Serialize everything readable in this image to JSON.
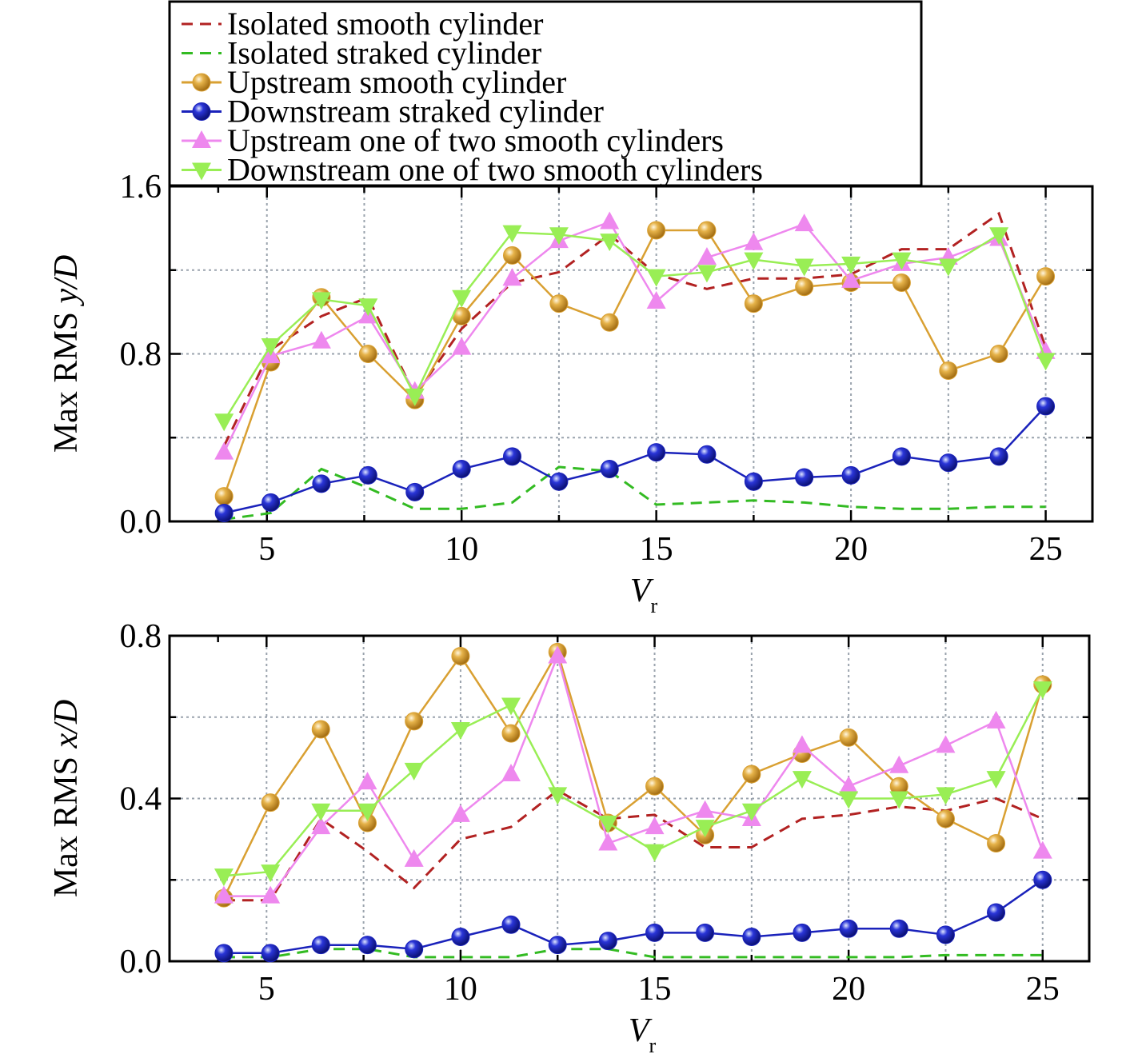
{
  "legend": {
    "entries": [
      {
        "label": "Isolated smooth cylinder",
        "color": "#b22222",
        "style": "dashed",
        "marker": "none"
      },
      {
        "label": "Isolated straked cylinder",
        "color": "#33bb22",
        "style": "dashed",
        "marker": "none"
      },
      {
        "label": "Upstream smooth cylinder",
        "color": "#d9a032",
        "style": "solid",
        "marker": "circle"
      },
      {
        "label": "Downstream straked cylinder",
        "color": "#1a22bb",
        "style": "solid",
        "marker": "circle"
      },
      {
        "label": "Upstream one of two smooth cylinders",
        "color": "#ee88ee",
        "style": "solid",
        "marker": "triangle-up"
      },
      {
        "label": "Downstream one of two smooth cylinders",
        "color": "#99ee55",
        "style": "solid",
        "marker": "triangle-down"
      }
    ]
  },
  "chart_data": [
    {
      "type": "line",
      "xlabel": "V",
      "xlabel_sub": "r",
      "ylabel_prefix": "Max RMS ",
      "ylabel_italic": "y/D",
      "xlim": [
        2.5,
        26.2
      ],
      "ylim": [
        0,
        1.6
      ],
      "xticks": [
        5,
        10,
        15,
        20,
        25
      ],
      "xtick_labels": [
        "5",
        "10",
        "15",
        "20",
        "25"
      ],
      "yticks": [
        0,
        0.8,
        1.6
      ],
      "ytick_labels": [
        "0.0",
        "0.8",
        "1.6"
      ],
      "grid": true,
      "x": [
        3.9,
        5.1,
        6.4,
        7.6,
        8.8,
        10.0,
        11.3,
        12.5,
        13.8,
        15.0,
        16.3,
        17.5,
        18.8,
        20.0,
        21.3,
        22.5,
        23.8,
        25.0
      ],
      "series": [
        {
          "name": "Isolated smooth cylinder",
          "values": [
            0.36,
            0.82,
            0.98,
            1.07,
            0.6,
            0.92,
            1.14,
            1.19,
            1.37,
            1.18,
            1.11,
            1.16,
            1.16,
            1.18,
            1.3,
            1.3,
            1.47,
            0.83
          ]
        },
        {
          "name": "Isolated straked cylinder",
          "values": [
            0.01,
            0.04,
            0.25,
            0.16,
            0.06,
            0.06,
            0.09,
            0.26,
            0.24,
            0.08,
            0.09,
            0.1,
            0.09,
            0.07,
            0.06,
            0.06,
            0.07,
            0.07
          ]
        },
        {
          "name": "Upstream smooth cylinder",
          "values": [
            0.12,
            0.76,
            1.07,
            0.8,
            0.58,
            0.98,
            1.27,
            1.04,
            0.95,
            1.39,
            1.39,
            1.04,
            1.12,
            1.14,
            1.14,
            0.72,
            0.8,
            1.17
          ]
        },
        {
          "name": "Downstream straked cylinder",
          "values": [
            0.04,
            0.09,
            0.18,
            0.22,
            0.14,
            0.25,
            0.31,
            0.19,
            0.25,
            0.33,
            0.32,
            0.19,
            0.21,
            0.22,
            0.31,
            0.28,
            0.31,
            0.55
          ]
        },
        {
          "name": "Upstream one of two smooth cylinders",
          "values": [
            0.33,
            0.79,
            0.86,
            0.98,
            0.62,
            0.83,
            1.16,
            1.34,
            1.43,
            1.05,
            1.26,
            1.33,
            1.42,
            1.15,
            1.23,
            1.26,
            1.35,
            0.81
          ]
        },
        {
          "name": "Downstream one of two smooth cylinders",
          "values": [
            0.48,
            0.84,
            1.06,
            1.03,
            0.6,
            1.07,
            1.38,
            1.37,
            1.34,
            1.17,
            1.19,
            1.25,
            1.22,
            1.23,
            1.25,
            1.22,
            1.37,
            0.77
          ]
        }
      ]
    },
    {
      "type": "line",
      "xlabel": "V",
      "xlabel_sub": "r",
      "ylabel_prefix": "Max RMS ",
      "ylabel_italic": "x/D",
      "xlim": [
        2.5,
        26.2
      ],
      "ylim": [
        0,
        0.8
      ],
      "xticks": [
        5,
        10,
        15,
        20,
        25
      ],
      "xtick_labels": [
        "5",
        "10",
        "15",
        "20",
        "25"
      ],
      "yticks": [
        0,
        0.4,
        0.8
      ],
      "ytick_labels": [
        "0.0",
        "0.4",
        "0.8"
      ],
      "grid": true,
      "x": [
        3.9,
        5.1,
        6.4,
        7.6,
        8.8,
        10.0,
        11.3,
        12.5,
        13.8,
        15.0,
        16.3,
        17.5,
        18.8,
        20.0,
        21.3,
        22.5,
        23.8,
        25.0
      ],
      "series": [
        {
          "name": "Isolated smooth cylinder",
          "values": [
            0.15,
            0.15,
            0.35,
            0.27,
            0.18,
            0.3,
            0.33,
            0.42,
            0.35,
            0.36,
            0.28,
            0.28,
            0.35,
            0.36,
            0.38,
            0.37,
            0.4,
            0.35
          ]
        },
        {
          "name": "Isolated straked cylinder",
          "values": [
            0.01,
            0.01,
            0.03,
            0.03,
            0.01,
            0.01,
            0.01,
            0.03,
            0.03,
            0.01,
            0.01,
            0.01,
            0.01,
            0.01,
            0.01,
            0.015,
            0.015,
            0.015
          ]
        },
        {
          "name": "Upstream smooth cylinder",
          "values": [
            0.155,
            0.39,
            0.57,
            0.34,
            0.59,
            0.75,
            0.56,
            0.76,
            0.34,
            0.43,
            0.31,
            0.46,
            0.51,
            0.55,
            0.43,
            0.35,
            0.29,
            0.68
          ]
        },
        {
          "name": "Downstream straked cylinder",
          "values": [
            0.02,
            0.02,
            0.04,
            0.04,
            0.03,
            0.06,
            0.09,
            0.04,
            0.05,
            0.07,
            0.07,
            0.06,
            0.07,
            0.08,
            0.08,
            0.065,
            0.12,
            0.2
          ]
        },
        {
          "name": "Upstream one of two smooth cylinders",
          "values": [
            0.16,
            0.16,
            0.33,
            0.44,
            0.25,
            0.36,
            0.46,
            0.75,
            0.29,
            0.33,
            0.37,
            0.35,
            0.53,
            0.43,
            0.48,
            0.53,
            0.59,
            0.27
          ]
        },
        {
          "name": "Downstream one of two smooth cylinders",
          "values": [
            0.21,
            0.22,
            0.37,
            0.37,
            0.47,
            0.57,
            0.63,
            0.41,
            0.34,
            0.27,
            0.33,
            0.37,
            0.45,
            0.4,
            0.4,
            0.41,
            0.45,
            0.67
          ]
        }
      ]
    }
  ]
}
